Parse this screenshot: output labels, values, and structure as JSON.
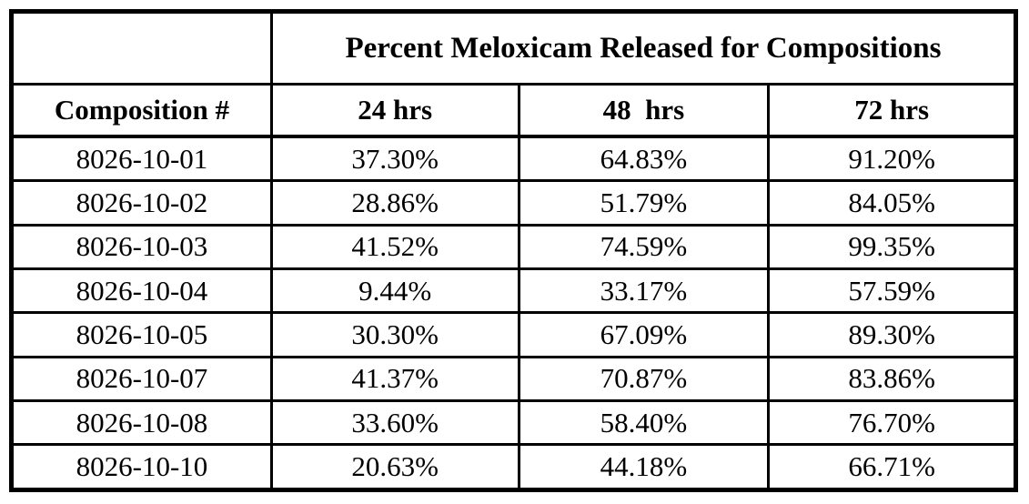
{
  "colors": {
    "background": "#ffffff",
    "border": "#000000",
    "text": "#000000"
  },
  "chart_data": {
    "type": "table",
    "title": "Percent Meloxicam Released for Compositions",
    "columns": [
      "Composition #",
      "24 hrs",
      "48  hrs",
      "72 hrs"
    ],
    "rows": [
      [
        "8026-10-01",
        "37.30%",
        "64.83%",
        "91.20%"
      ],
      [
        "8026-10-02",
        "28.86%",
        "51.79%",
        "84.05%"
      ],
      [
        "8026-10-03",
        "41.52%",
        "74.59%",
        "99.35%"
      ],
      [
        "8026-10-04",
        "9.44%",
        "33.17%",
        "57.59%"
      ],
      [
        "8026-10-05",
        "30.30%",
        "67.09%",
        "89.30%"
      ],
      [
        "8026-10-07",
        "41.37%",
        "70.87%",
        "83.86%"
      ],
      [
        "8026-10-08",
        "33.60%",
        "58.40%",
        "76.70%"
      ],
      [
        "8026-10-10",
        "20.63%",
        "44.18%",
        "66.71%"
      ]
    ]
  }
}
